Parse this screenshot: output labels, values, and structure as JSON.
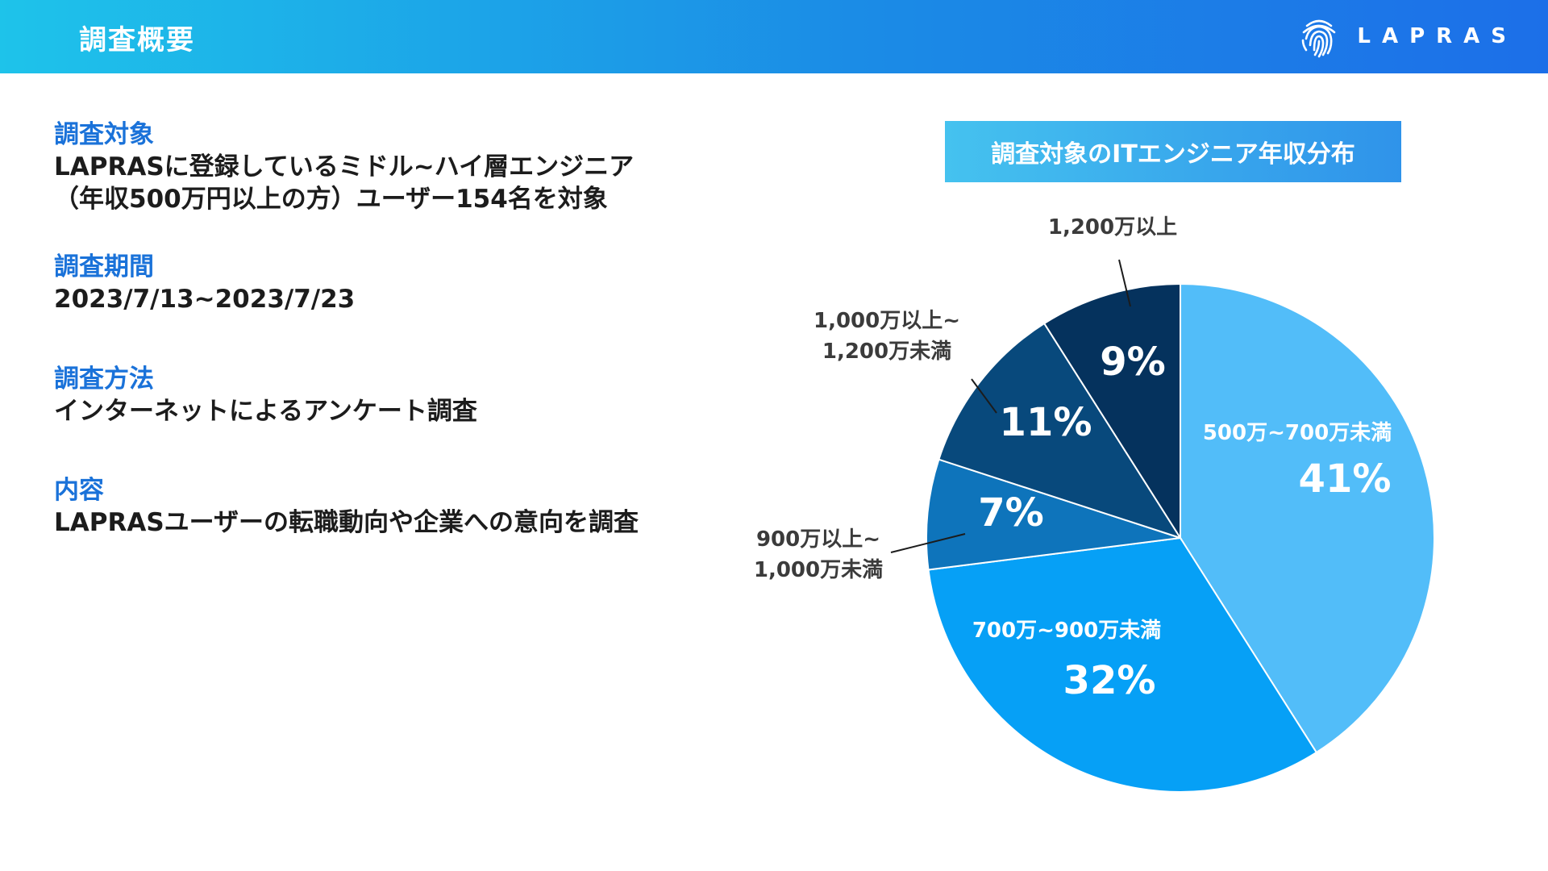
{
  "header": {
    "title": "調査概要",
    "logo_text": "LAPRAS"
  },
  "sections": [
    {
      "heading": "調査対象",
      "lines": [
        "LAPRASに登録しているミドル~ハイ層エンジニア",
        "（年収500万円以上の方）ユーザー154名を対象"
      ]
    },
    {
      "heading": "調査期間",
      "lines": [
        "2023/7/13~2023/7/23"
      ]
    },
    {
      "heading": "調査方法",
      "lines": [
        "インターネットによるアンケート調査"
      ]
    },
    {
      "heading": "内容",
      "lines": [
        "LAPRASユーザーの転職動向や企業への意向を調査"
      ]
    }
  ],
  "chart_data": {
    "type": "pie",
    "title": "調査対象のITエンジニア年収分布",
    "slices": [
      {
        "label": [
          "500万~700万未満"
        ],
        "value": 41,
        "value_label": "41%",
        "color": "#52bdf9",
        "label_pos": "inside"
      },
      {
        "label": [
          "700万~900万未満"
        ],
        "value": 32,
        "value_label": "32%",
        "color": "#06a0f6",
        "label_pos": "inside"
      },
      {
        "label": [
          "900万以上~",
          "1,000万未満"
        ],
        "value": 7,
        "value_label": "7%",
        "color": "#0e74bb",
        "label_pos": "outside"
      },
      {
        "label": [
          "1,000万以上~",
          "1,200万未満"
        ],
        "value": 11,
        "value_label": "11%",
        "color": "#08497c",
        "label_pos": "outside"
      },
      {
        "label": [
          "1,200万以上"
        ],
        "value": 9,
        "value_label": "9%",
        "color": "#05325d",
        "label_pos": "outside"
      }
    ]
  }
}
